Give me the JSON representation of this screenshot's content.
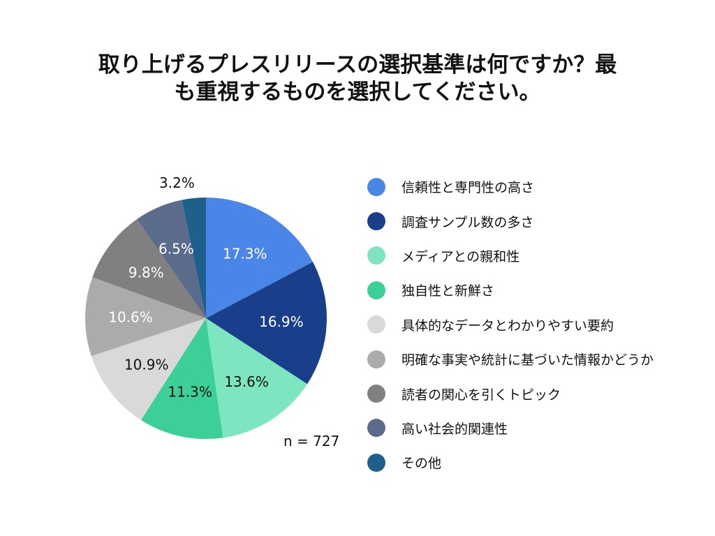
{
  "title_lines": [
    "取り上げるプレスリリースの選択基準は何ですか？最",
    "も重視するものを選択してください。"
  ],
  "sample_note": "n = 727",
  "chart_data": {
    "type": "pie",
    "title": "取り上げるプレスリリースの選択基準は何ですか？最も重視するものを選択してください。",
    "unit": "%",
    "legend_position": "right",
    "slices": [
      {
        "label": "信頼性と専門性の高さ",
        "value": 17.3,
        "display": "17.3%",
        "color": "#4a86e8",
        "text_color": "#ffffff"
      },
      {
        "label": "調査サンプル数の多さ",
        "value": 16.9,
        "display": "16.9%",
        "color": "#1a3f8a",
        "text_color": "#ffffff"
      },
      {
        "label": "メディアとの親和性",
        "value": 13.6,
        "display": "13.6%",
        "color": "#7de6c0",
        "text_color": "#111111"
      },
      {
        "label": "独自性と新鮮さ",
        "value": 11.3,
        "display": "11.3%",
        "color": "#3ccf97",
        "text_color": "#111111"
      },
      {
        "label": "具体的なデータとわかりやすい要約",
        "value": 10.9,
        "display": "10.9%",
        "color": "#d9d9d9",
        "text_color": "#111111"
      },
      {
        "label": "明確な事実や統計に基づいた情報かどうか",
        "value": 10.6,
        "display": "10.6%",
        "color": "#ababab",
        "text_color": "#ffffff"
      },
      {
        "label": "読者の関心を引くトピック",
        "value": 9.8,
        "display": "9.8%",
        "color": "#808080",
        "text_color": "#ffffff"
      },
      {
        "label": "高い社会的関連性",
        "value": 6.5,
        "display": "6.5%",
        "color": "#5b6b8c",
        "text_color": "#ffffff"
      },
      {
        "label": "その他",
        "value": 3.2,
        "display": "3.2%",
        "color": "#1f5f8b",
        "text_color": "#111111"
      }
    ]
  }
}
